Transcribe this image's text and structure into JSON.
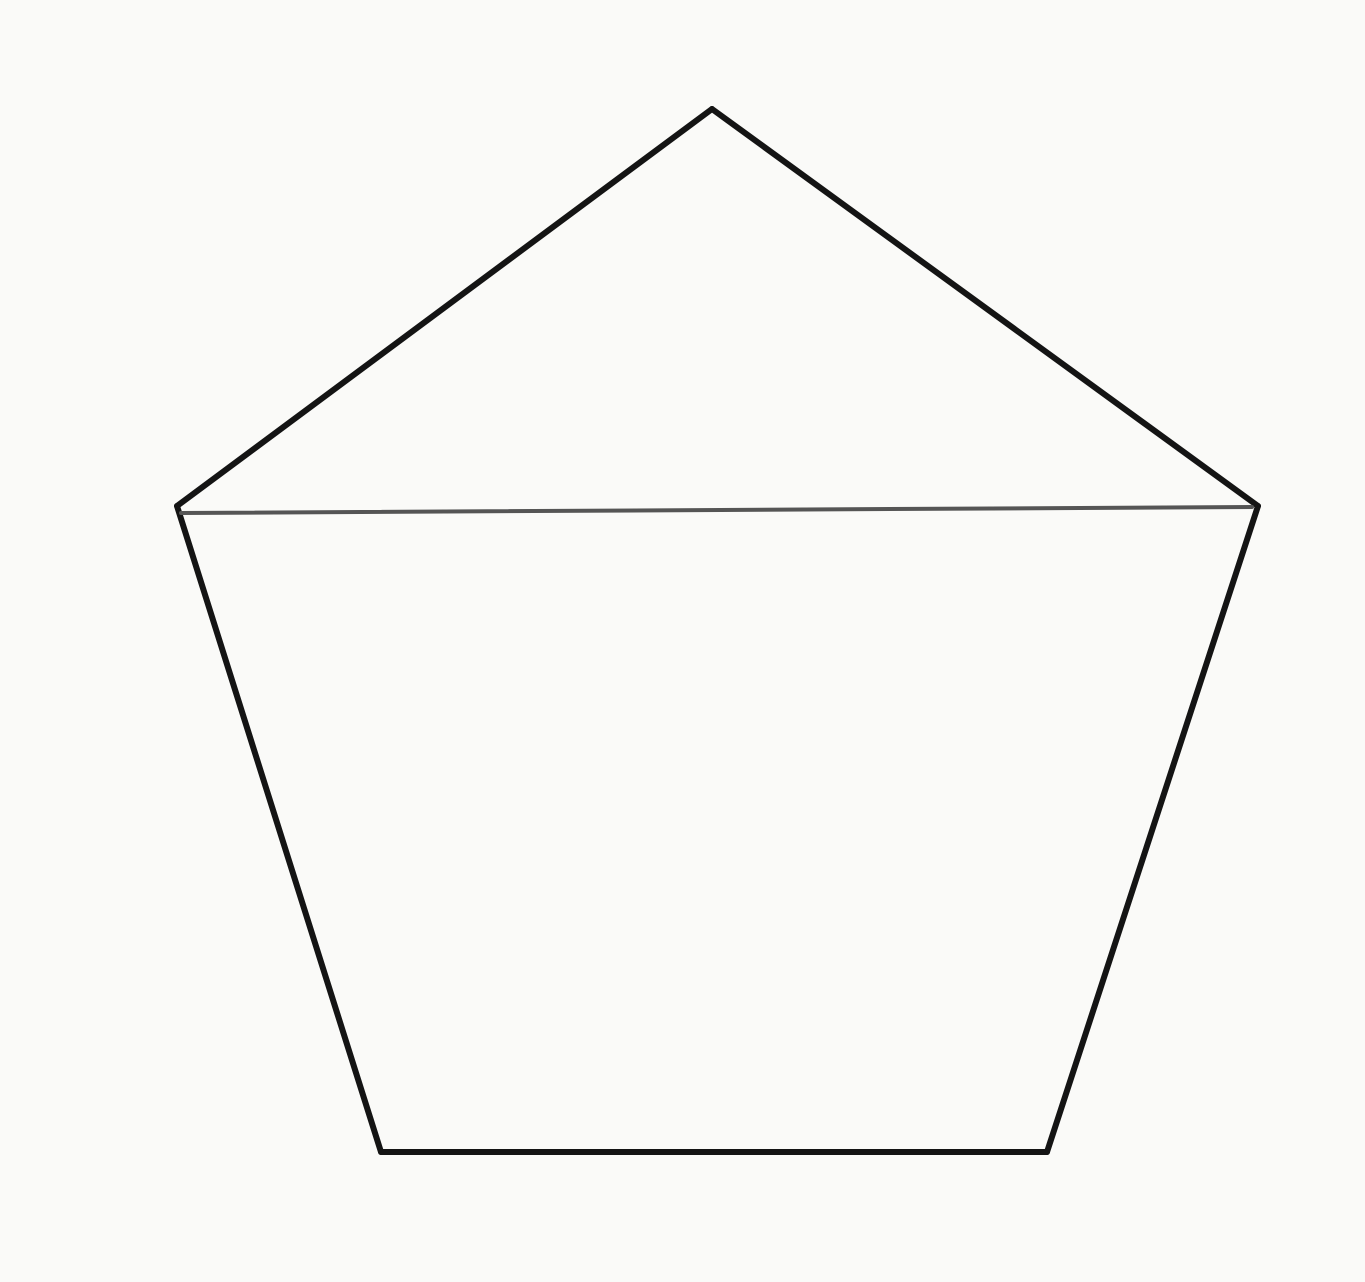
{
  "figure": {
    "shape": "pentagon",
    "line_color": "#141414",
    "diagonal_color": "#555555",
    "background_color": "#fafaf8"
  }
}
